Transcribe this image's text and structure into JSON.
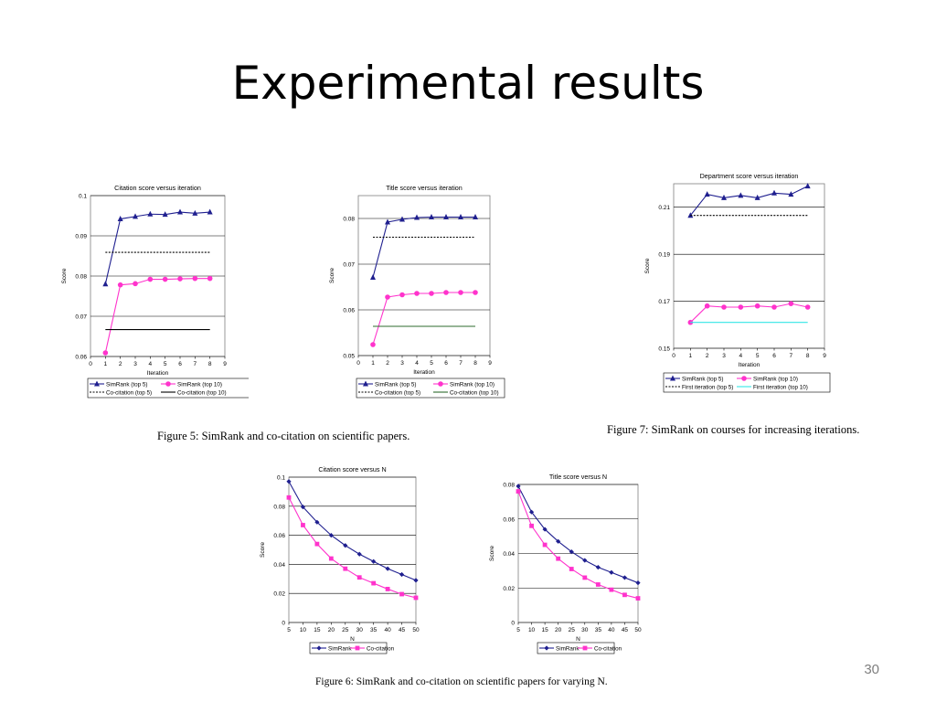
{
  "slide": {
    "title": "Experimental results",
    "page_number": "30"
  },
  "captions": {
    "fig5": "Figure 5: SimRank and co-citation on scientific papers.",
    "fig7": "Figure 7: SimRank on courses for increasing iterations.",
    "fig6": "Figure 6: SimRank and co-citation on scientific papers for varying N."
  },
  "colors": {
    "navy": "#1f1f8f",
    "magenta": "#ff33cc",
    "green": "#2e6b2e",
    "cyan": "#33e6e6",
    "grid": "#000000"
  },
  "chart_data": [
    {
      "id": "citation-iter",
      "type": "line",
      "title": "Citation score versus iteration",
      "xlabel": "Iteration",
      "ylabel": "Score",
      "xlim": [
        0,
        9
      ],
      "ylim": [
        0.06,
        0.1
      ],
      "xticks": [
        "0",
        "1",
        "2",
        "3",
        "4",
        "5",
        "6",
        "7",
        "8",
        "9"
      ],
      "yticks": [
        "0.06",
        "0.07",
        "0.08",
        "0.09",
        "0.1"
      ],
      "ytick_values": [
        0.06,
        0.07,
        0.08,
        0.09,
        0.1
      ],
      "grid": "horizontal",
      "series": [
        {
          "name": "SimRank (top 5)",
          "color": "#1f1f8f",
          "marker": "triangle",
          "dash": "solid",
          "x": [
            1,
            2,
            3,
            4,
            5,
            6,
            7,
            8
          ],
          "y": [
            0.078,
            0.0942,
            0.0948,
            0.0954,
            0.0953,
            0.0959,
            0.0956,
            0.0959
          ]
        },
        {
          "name": "SimRank (top 10)",
          "color": "#ff33cc",
          "marker": "circle",
          "dash": "solid",
          "x": [
            1,
            2,
            3,
            4,
            5,
            6,
            7,
            8
          ],
          "y": [
            0.0609,
            0.0778,
            0.0781,
            0.0792,
            0.0792,
            0.0793,
            0.0794,
            0.0794
          ]
        },
        {
          "name": "Co-citation (top 5)",
          "color": "#000000",
          "marker": "none",
          "dash": "dotted",
          "x": [
            1,
            8
          ],
          "y": [
            0.0859,
            0.0859
          ]
        },
        {
          "name": "Co-citation (top 10)",
          "color": "#000000",
          "marker": "none",
          "dash": "solid",
          "x": [
            1,
            8
          ],
          "y": [
            0.0667,
            0.0667
          ]
        }
      ]
    },
    {
      "id": "title-iter",
      "type": "line",
      "title": "Title score versus iteration",
      "xlabel": "Iteration",
      "ylabel": "Score",
      "xlim": [
        0,
        9
      ],
      "ylim": [
        0.05,
        0.085
      ],
      "xticks": [
        "0",
        "1",
        "2",
        "3",
        "4",
        "5",
        "6",
        "7",
        "8",
        "9"
      ],
      "yticks": [
        "0.05",
        "0.06",
        "0.07",
        "0.08"
      ],
      "ytick_values": [
        0.05,
        0.06,
        0.07,
        0.08
      ],
      "grid": "horizontal",
      "series": [
        {
          "name": "SimRank (top 5)",
          "color": "#1f1f8f",
          "marker": "triangle",
          "dash": "solid",
          "x": [
            1,
            2,
            3,
            4,
            5,
            6,
            7,
            8
          ],
          "y": [
            0.0671,
            0.0792,
            0.0798,
            0.0802,
            0.0803,
            0.0803,
            0.0803,
            0.0803
          ]
        },
        {
          "name": "SimRank (top 10)",
          "color": "#ff33cc",
          "marker": "circle",
          "dash": "solid",
          "x": [
            1,
            2,
            3,
            4,
            5,
            6,
            7,
            8
          ],
          "y": [
            0.0524,
            0.0628,
            0.0633,
            0.0636,
            0.0636,
            0.0638,
            0.0638,
            0.0638
          ]
        },
        {
          "name": "Co-citation (top 5)",
          "color": "#000000",
          "marker": "none",
          "dash": "dotted",
          "x": [
            1,
            8
          ],
          "y": [
            0.0759,
            0.0759
          ]
        },
        {
          "name": "Co-citation (top 10)",
          "color": "#2e6b2e",
          "marker": "none",
          "dash": "solid",
          "x": [
            1,
            8
          ],
          "y": [
            0.0564,
            0.0564
          ]
        }
      ]
    },
    {
      "id": "department-iter",
      "type": "line",
      "title": "Department score versus iteration",
      "xlabel": "Iteration",
      "ylabel": "Score",
      "xlim": [
        0,
        9
      ],
      "ylim": [
        0.15,
        0.22
      ],
      "xticks": [
        "0",
        "1",
        "2",
        "3",
        "4",
        "5",
        "6",
        "7",
        "8",
        "9"
      ],
      "yticks": [
        "0.15",
        "0.17",
        "0.19",
        "0.21"
      ],
      "ytick_values": [
        0.15,
        0.17,
        0.19,
        0.21
      ],
      "grid": "horizontal",
      "series": [
        {
          "name": "SimRank (top 5)",
          "color": "#1f1f8f",
          "marker": "triangle",
          "dash": "solid",
          "x": [
            1,
            2,
            3,
            4,
            5,
            6,
            7,
            8
          ],
          "y": [
            0.2065,
            0.2155,
            0.214,
            0.215,
            0.214,
            0.216,
            0.2155,
            0.219
          ]
        },
        {
          "name": "SimRank (top 10)",
          "color": "#ff33cc",
          "marker": "circle",
          "dash": "solid",
          "x": [
            1,
            2,
            3,
            4,
            5,
            6,
            7,
            8
          ],
          "y": [
            0.161,
            0.168,
            0.1675,
            0.1675,
            0.168,
            0.1675,
            0.169,
            0.1675
          ]
        },
        {
          "name": "First iteration (top 5)",
          "color": "#000000",
          "marker": "none",
          "dash": "dotted",
          "x": [
            1,
            8
          ],
          "y": [
            0.2065,
            0.2065
          ]
        },
        {
          "name": "First iteration (top 10)",
          "color": "#33e6e6",
          "marker": "none",
          "dash": "solid",
          "x": [
            1,
            8
          ],
          "y": [
            0.161,
            0.161
          ]
        }
      ]
    },
    {
      "id": "citation-n",
      "type": "line",
      "title": "Citation score versus N",
      "xlabel": "N",
      "ylabel": "Score",
      "xlim": [
        5,
        50
      ],
      "ylim": [
        0,
        0.1
      ],
      "xticks": [
        "5",
        "10",
        "15",
        "20",
        "25",
        "30",
        "35",
        "40",
        "45",
        "50"
      ],
      "yticks": [
        "0",
        "0.02",
        "0.04",
        "0.06",
        "0.08",
        "0.1"
      ],
      "ytick_values": [
        0,
        0.02,
        0.04,
        0.06,
        0.08,
        0.1
      ],
      "grid": "horizontal",
      "series": [
        {
          "name": "SimRank",
          "color": "#1f1f8f",
          "marker": "diamond",
          "dash": "solid",
          "x": [
            5,
            10,
            15,
            20,
            25,
            30,
            35,
            40,
            45,
            50
          ],
          "y": [
            0.097,
            0.0795,
            0.069,
            0.06,
            0.053,
            0.047,
            0.042,
            0.037,
            0.033,
            0.029
          ]
        },
        {
          "name": "Co-citation",
          "color": "#ff33cc",
          "marker": "square",
          "dash": "solid",
          "x": [
            5,
            10,
            15,
            20,
            25,
            30,
            35,
            40,
            45,
            50
          ],
          "y": [
            0.086,
            0.067,
            0.054,
            0.044,
            0.037,
            0.031,
            0.027,
            0.023,
            0.0195,
            0.017
          ]
        }
      ]
    },
    {
      "id": "title-n",
      "type": "line",
      "title": "Title score versus N",
      "xlabel": "N",
      "ylabel": "Score",
      "xlim": [
        5,
        50
      ],
      "ylim": [
        0,
        0.08
      ],
      "xticks": [
        "5",
        "10",
        "15",
        "20",
        "25",
        "30",
        "35",
        "40",
        "45",
        "50"
      ],
      "yticks": [
        "0",
        "0.02",
        "0.04",
        "0.06",
        "0.08"
      ],
      "ytick_values": [
        0,
        0.02,
        0.04,
        0.06,
        0.08
      ],
      "grid": "horizontal",
      "series": [
        {
          "name": "SimRank",
          "color": "#1f1f8f",
          "marker": "diamond",
          "dash": "solid",
          "x": [
            5,
            10,
            15,
            20,
            25,
            30,
            35,
            40,
            45,
            50
          ],
          "y": [
            0.079,
            0.064,
            0.054,
            0.047,
            0.041,
            0.036,
            0.032,
            0.029,
            0.026,
            0.023
          ]
        },
        {
          "name": "Co-citation",
          "color": "#ff33cc",
          "marker": "square",
          "dash": "solid",
          "x": [
            5,
            10,
            15,
            20,
            25,
            30,
            35,
            40,
            45,
            50
          ],
          "y": [
            0.076,
            0.056,
            0.045,
            0.037,
            0.031,
            0.026,
            0.022,
            0.019,
            0.016,
            0.014
          ]
        }
      ]
    }
  ]
}
